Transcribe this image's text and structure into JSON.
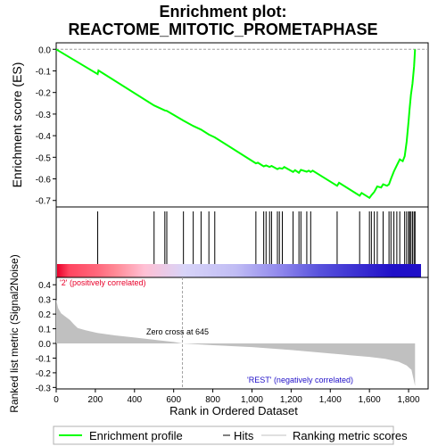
{
  "chart_data": {
    "type": "line",
    "title_line1": "Enrichment plot:",
    "title_line2": "REACTOME_MITOTIC_PROMETAPHASE",
    "x_label": "Rank in Ordered Dataset",
    "x_lim": [
      0,
      1900
    ],
    "x_ticks": [
      "0",
      "200",
      "400",
      "600",
      "800",
      "1,000",
      "1,200",
      "1,400",
      "1,600",
      "1,800"
    ],
    "x_tick_values": [
      0,
      200,
      400,
      600,
      800,
      1000,
      1200,
      1400,
      1600,
      1800
    ],
    "es_panel": {
      "y_label": "Enrichment score (ES)",
      "y_lim": [
        -0.73,
        0.03
      ],
      "y_ticks": [
        "0.0",
        "-0.1",
        "-0.2",
        "-0.3",
        "-0.4",
        "-0.5",
        "-0.6",
        "-0.7"
      ],
      "y_tick_values": [
        0.0,
        -0.1,
        -0.2,
        -0.3,
        -0.4,
        -0.5,
        -0.6,
        -0.7
      ],
      "series": [
        {
          "name": "Enrichment profile",
          "color": "#00ff00",
          "points": [
            [
              0,
              0.0
            ],
            [
              212,
              -0.115
            ],
            [
              216,
              -0.098
            ],
            [
              500,
              -0.26
            ],
            [
              555,
              -0.283
            ],
            [
              565,
              -0.285
            ],
            [
              650,
              -0.33
            ],
            [
              700,
              -0.355
            ],
            [
              740,
              -0.372
            ],
            [
              780,
              -0.395
            ],
            [
              810,
              -0.408
            ],
            [
              1020,
              -0.528
            ],
            [
              1030,
              -0.525
            ],
            [
              1060,
              -0.542
            ],
            [
              1072,
              -0.538
            ],
            [
              1090,
              -0.545
            ],
            [
              1100,
              -0.54
            ],
            [
              1130,
              -0.555
            ],
            [
              1140,
              -0.55
            ],
            [
              1155,
              -0.553
            ],
            [
              1165,
              -0.545
            ],
            [
              1210,
              -0.568
            ],
            [
              1220,
              -0.56
            ],
            [
              1240,
              -0.572
            ],
            [
              1250,
              -0.558
            ],
            [
              1280,
              -0.567
            ],
            [
              1290,
              -0.562
            ],
            [
              1300,
              -0.568
            ],
            [
              1310,
              -0.562
            ],
            [
              1435,
              -0.632
            ],
            [
              1445,
              -0.618
            ],
            [
              1550,
              -0.678
            ],
            [
              1560,
              -0.665
            ],
            [
              1600,
              -0.688
            ],
            [
              1610,
              -0.676
            ],
            [
              1625,
              -0.66
            ],
            [
              1640,
              -0.635
            ],
            [
              1660,
              -0.64
            ],
            [
              1670,
              -0.625
            ],
            [
              1690,
              -0.632
            ],
            [
              1700,
              -0.625
            ],
            [
              1710,
              -0.6
            ],
            [
              1725,
              -0.565
            ],
            [
              1740,
              -0.537
            ],
            [
              1755,
              -0.51
            ],
            [
              1770,
              -0.518
            ],
            [
              1780,
              -0.495
            ],
            [
              1790,
              -0.428
            ],
            [
              1800,
              -0.33
            ],
            [
              1805,
              -0.28
            ],
            [
              1812,
              -0.21
            ],
            [
              1820,
              -0.16
            ],
            [
              1828,
              -0.08
            ],
            [
              1833,
              0.0
            ]
          ]
        }
      ],
      "hits": [
        212,
        500,
        555,
        565,
        650,
        700,
        740,
        780,
        810,
        1020,
        1060,
        1072,
        1090,
        1100,
        1130,
        1140,
        1155,
        1210,
        1240,
        1250,
        1280,
        1300,
        1435,
        1550,
        1600,
        1610,
        1625,
        1640,
        1670,
        1700,
        1710,
        1725,
        1740,
        1755,
        1780,
        1790,
        1800,
        1805,
        1812,
        1820,
        1828,
        1833
      ]
    },
    "rank_bar": {
      "stops": [
        {
          "x": 0,
          "color": "#e8002a"
        },
        {
          "x": 60,
          "color": "#ff4560"
        },
        {
          "x": 210,
          "color": "#ff6a7e"
        },
        {
          "x": 300,
          "color": "#ff8c98"
        },
        {
          "x": 440,
          "color": "#ffc0d4"
        },
        {
          "x": 640,
          "color": "#d8d4f8"
        },
        {
          "x": 900,
          "color": "#c0bcf4"
        },
        {
          "x": 1130,
          "color": "#8e86ec"
        },
        {
          "x": 1320,
          "color": "#5852dc"
        },
        {
          "x": 1690,
          "color": "#2010c8"
        },
        {
          "x": 1833,
          "color": "#2010c8"
        }
      ]
    },
    "metric_panel": {
      "y_label": "Ranked list metric (Signal2Noise)",
      "y_lim": [
        -0.31,
        0.45
      ],
      "y_ticks": [
        "0.4",
        "0.3",
        "0.2",
        "0.1",
        "0.0",
        "-0.1",
        "-0.2",
        "-0.3"
      ],
      "y_tick_values": [
        0.4,
        0.3,
        0.2,
        0.1,
        0.0,
        -0.1,
        -0.2,
        -0.3
      ],
      "profile": [
        [
          0,
          0.3
        ],
        [
          10,
          0.24
        ],
        [
          25,
          0.205
        ],
        [
          45,
          0.185
        ],
        [
          70,
          0.16
        ],
        [
          90,
          0.13
        ],
        [
          110,
          0.105
        ],
        [
          150,
          0.09
        ],
        [
          210,
          0.072
        ],
        [
          300,
          0.055
        ],
        [
          400,
          0.04
        ],
        [
          500,
          0.025
        ],
        [
          600,
          0.01
        ],
        [
          645,
          0.0
        ],
        [
          800,
          -0.012
        ],
        [
          1000,
          -0.025
        ],
        [
          1200,
          -0.045
        ],
        [
          1400,
          -0.068
        ],
        [
          1500,
          -0.08
        ],
        [
          1600,
          -0.092
        ],
        [
          1680,
          -0.105
        ],
        [
          1750,
          -0.125
        ],
        [
          1790,
          -0.15
        ],
        [
          1815,
          -0.18
        ],
        [
          1825,
          -0.24
        ],
        [
          1833,
          -0.29
        ]
      ],
      "zero_cross": 645,
      "zero_cross_label": "Zero cross at 645",
      "positive_label": "'2' (positively correlated)",
      "negative_label": "'REST' (negatively correlated)"
    },
    "legend": {
      "placement": "bottom",
      "items": [
        {
          "label": "Enrichment profile",
          "color": "#00ff00"
        },
        {
          "label": "Hits",
          "color": "#000000"
        },
        {
          "label": "Ranking metric scores",
          "color": "#c0c0c0"
        }
      ]
    }
  }
}
